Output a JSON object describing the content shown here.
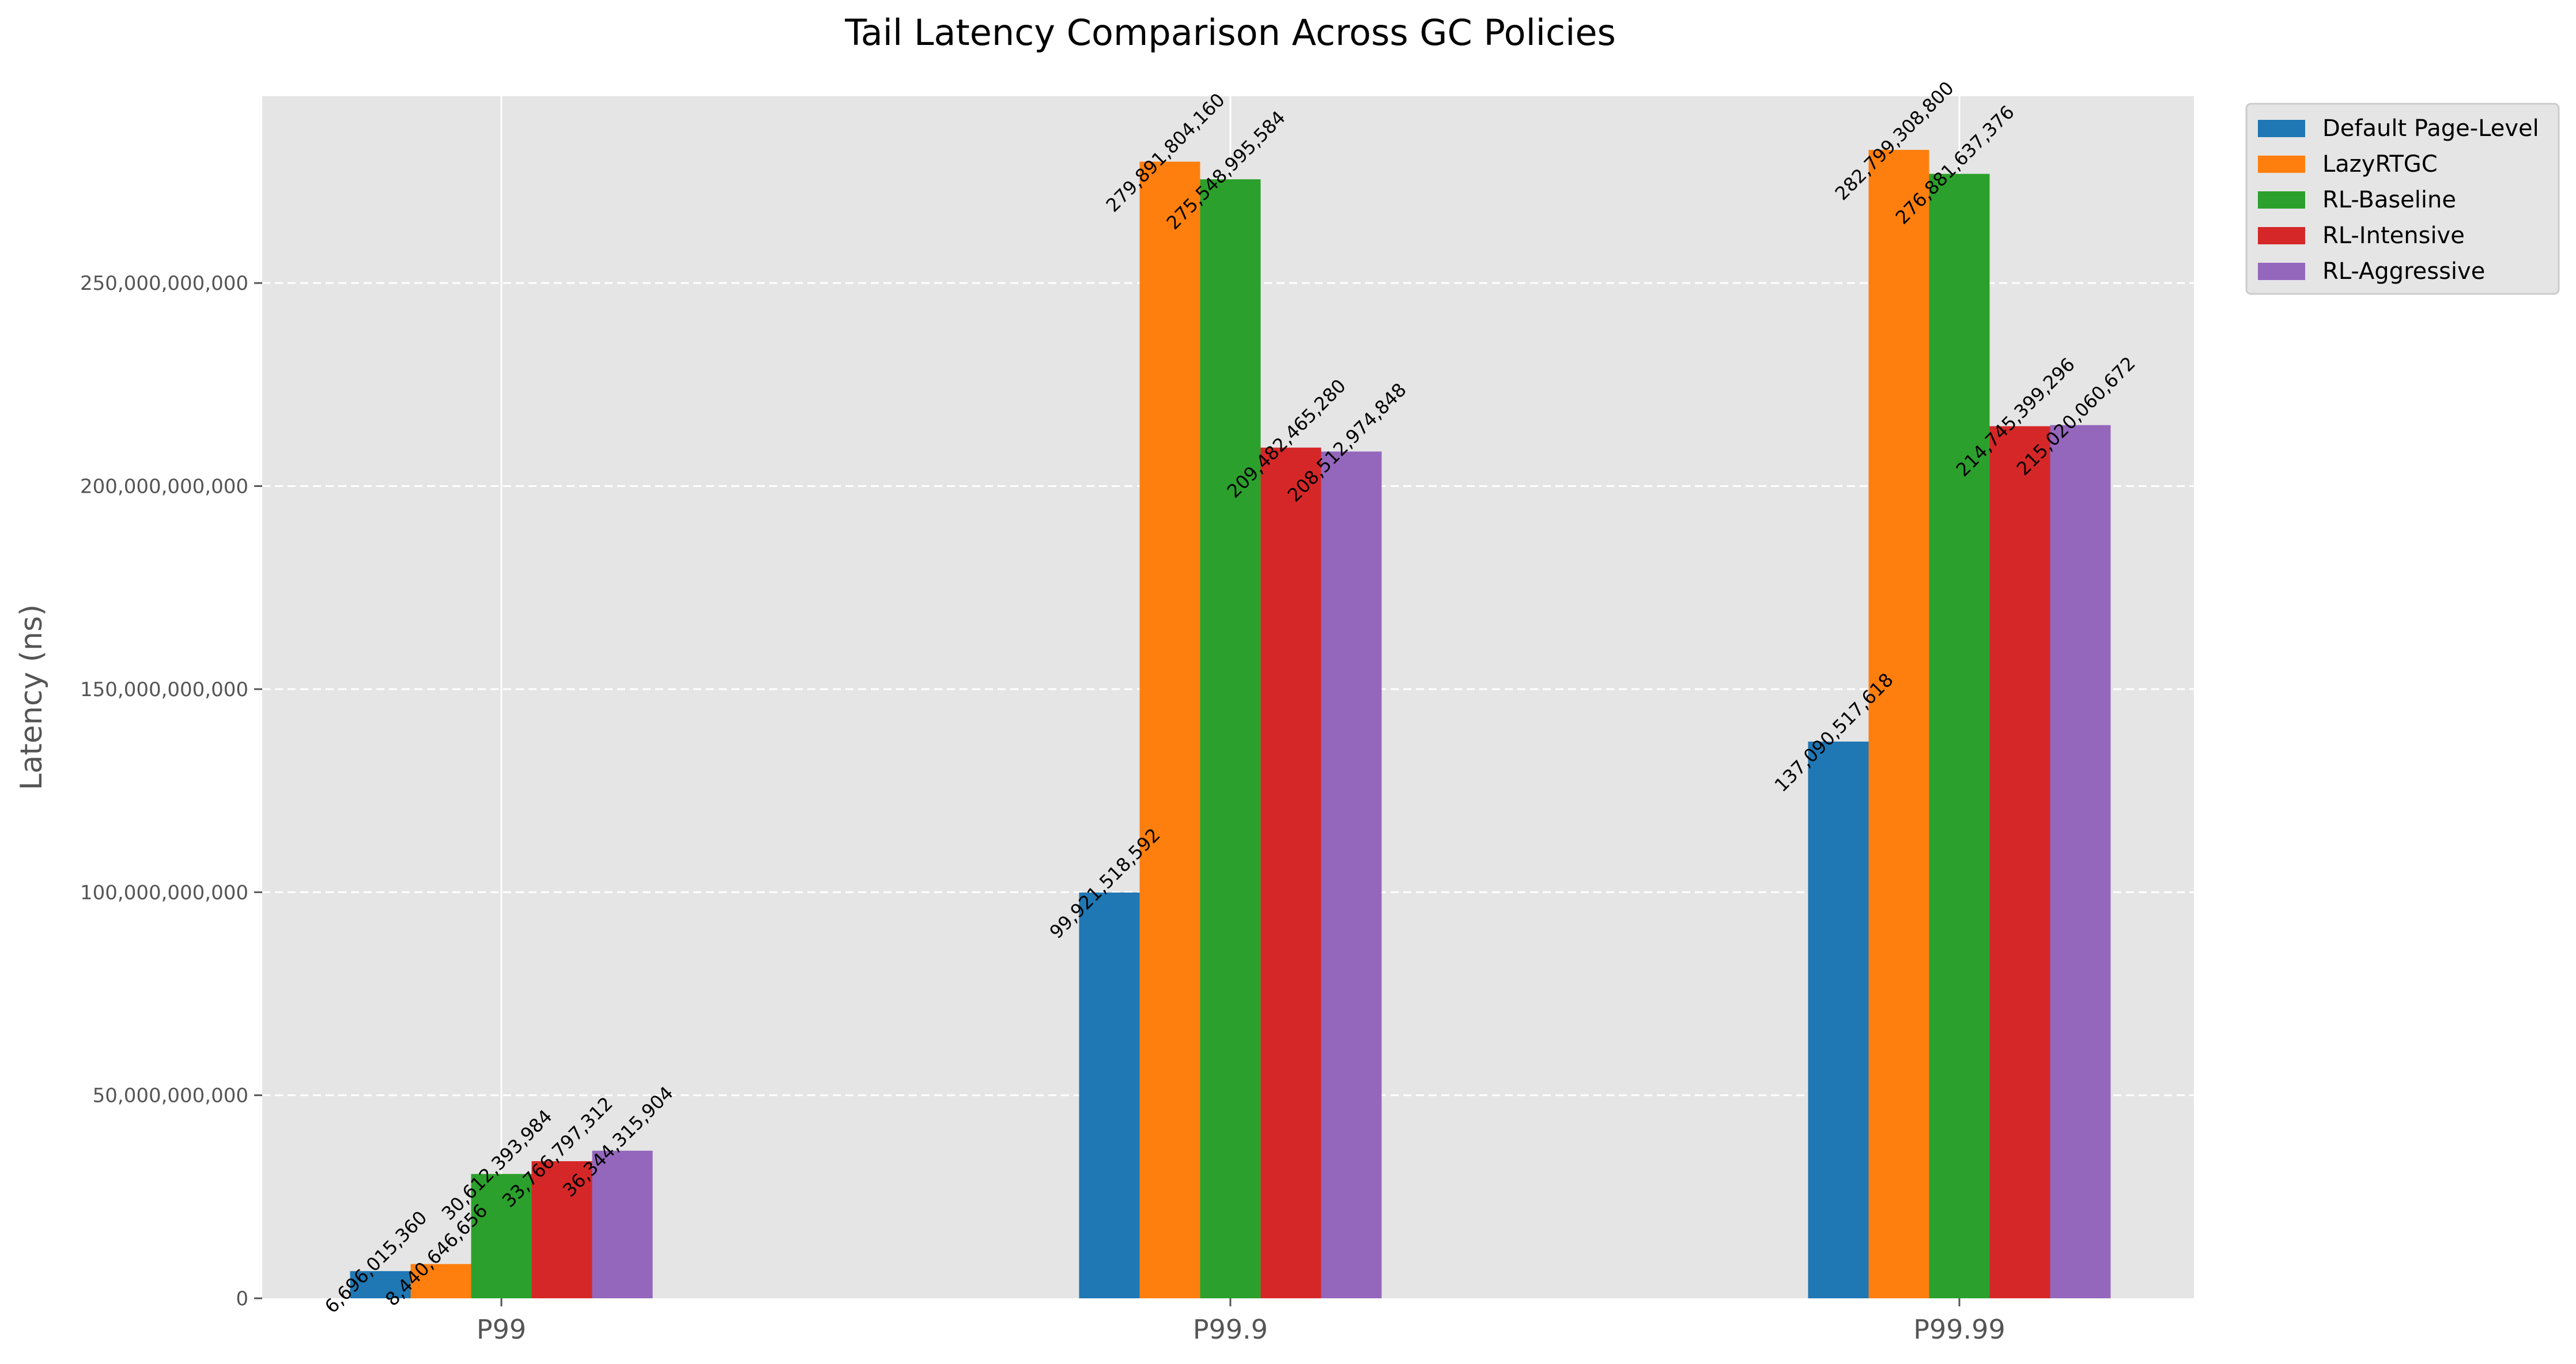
{
  "chart_data": {
    "type": "bar",
    "title": "Tail Latency Comparison Across GC Policies",
    "xlabel": "",
    "ylabel": "Latency (ns)",
    "categories": [
      "P99",
      "P99.9",
      "P99.99"
    ],
    "ylim": [
      0,
      296000000000
    ],
    "yticks": [
      0,
      50000000000,
      100000000000,
      150000000000,
      200000000000,
      250000000000
    ],
    "ytick_labels": [
      "0",
      "50,000,000,000",
      "100,000,000,000",
      "150,000,000,000",
      "200,000,000,000",
      "250,000,000,000"
    ],
    "grid": true,
    "legend_position": "outside top-right",
    "series": [
      {
        "name": "Default Page-Level",
        "color": "#1f77b4",
        "values": [
          6696015360,
          99921518592,
          137090517618
        ],
        "labels": [
          "6,696,015,360",
          "99,921,518,592",
          "137,090,517,618"
        ]
      },
      {
        "name": "LazyRTGC",
        "color": "#ff7f0e",
        "values": [
          8440646656,
          279891804160,
          282799308800
        ],
        "labels": [
          "8,440,646,656",
          "279,891,804,160",
          "282,799,308,800"
        ]
      },
      {
        "name": "RL-Baseline",
        "color": "#2ca02c",
        "values": [
          30612393984,
          275548995584,
          276881637376
        ],
        "labels": [
          "30,612,393,984",
          "275,548,995,584",
          "276,881,637,376"
        ]
      },
      {
        "name": "RL-Intensive",
        "color": "#d62728",
        "values": [
          33766797312,
          209482465280,
          214745399296
        ],
        "labels": [
          "33,766,797,312",
          "209,482,465,280",
          "214,745,399,296"
        ]
      },
      {
        "name": "RL-Aggressive",
        "color": "#9467bd",
        "values": [
          36344315904,
          208512974848,
          215020060672
        ],
        "labels": [
          "36,344,315,904",
          "208,512,974,848",
          "215,020,060,672"
        ]
      }
    ]
  }
}
